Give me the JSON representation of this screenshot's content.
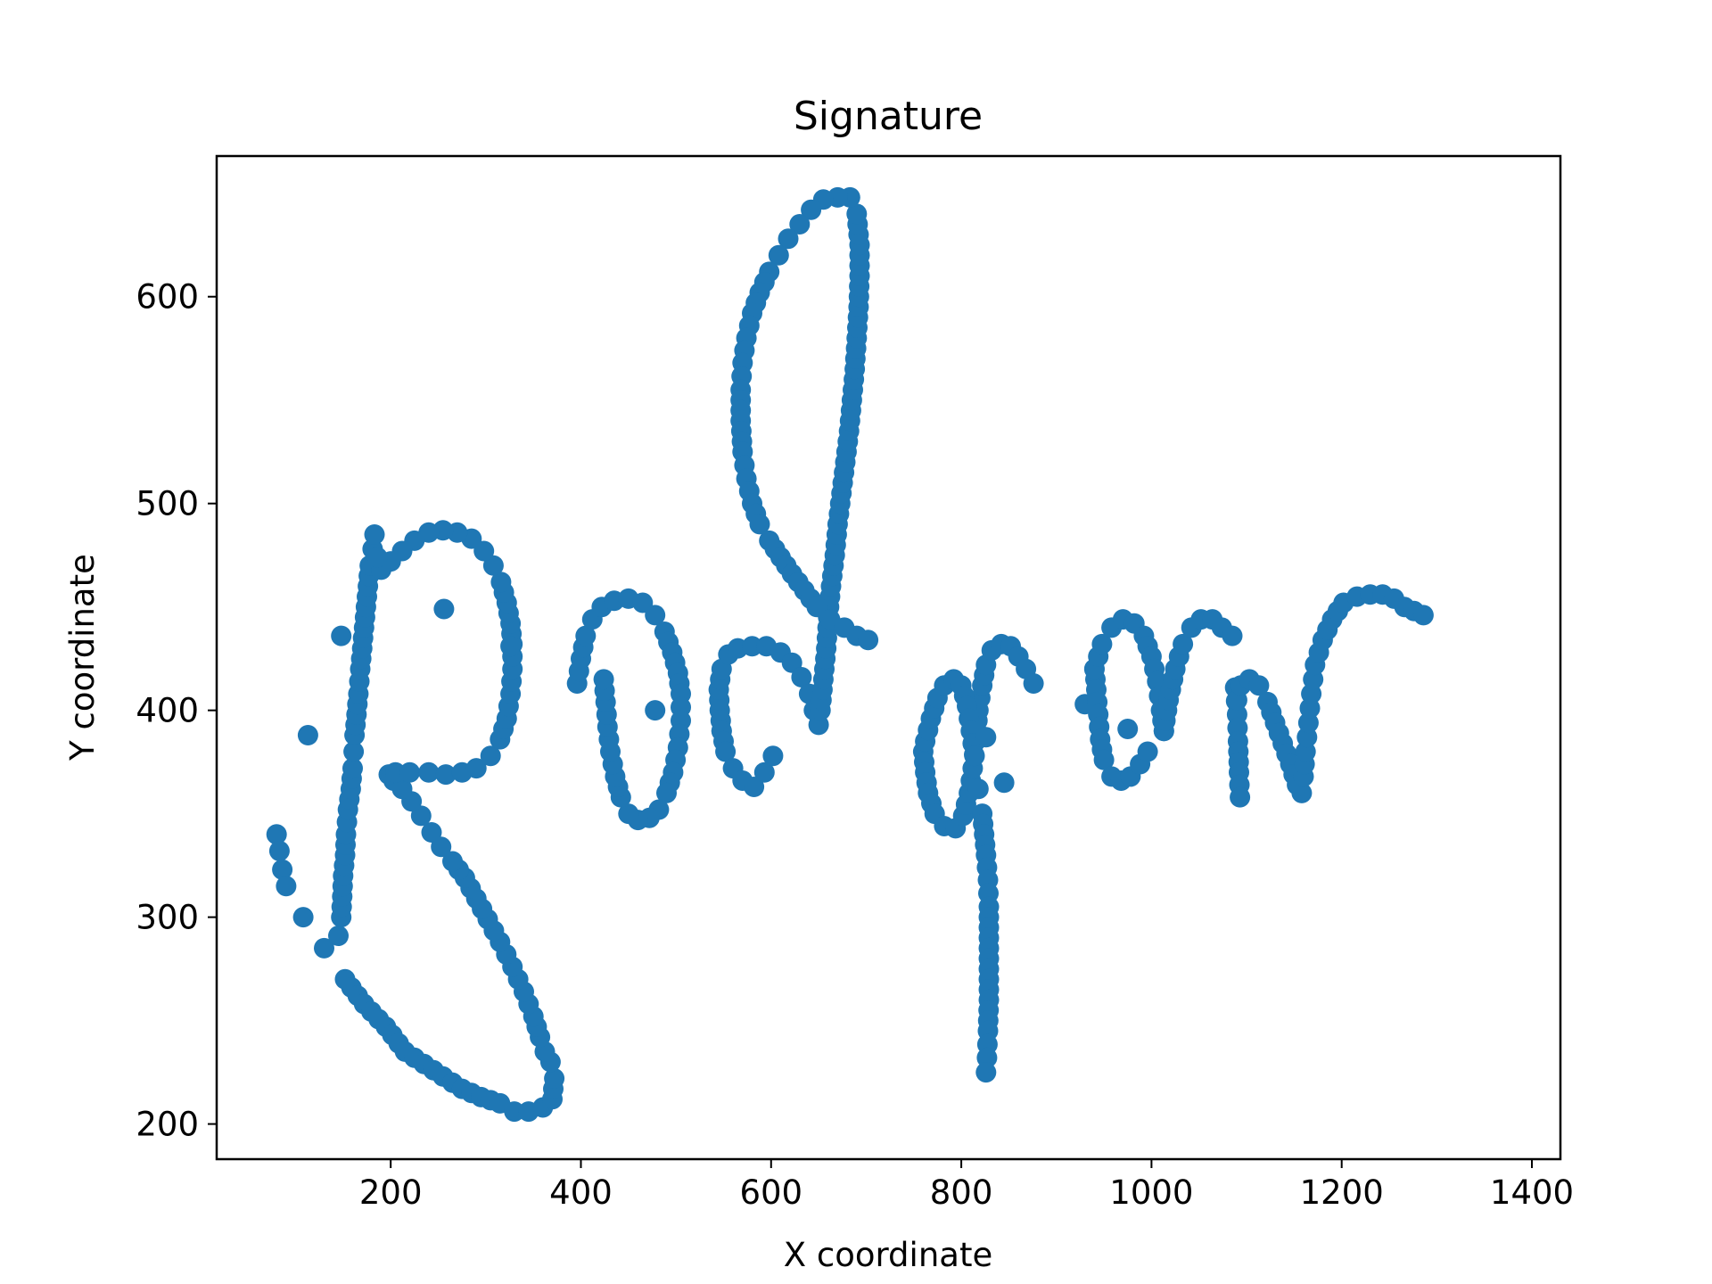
{
  "chart_data": {
    "type": "scatter",
    "title": "Signature",
    "xlabel": "X coordinate",
    "ylabel": "Y coordinate",
    "xlim": [
      17,
      1430
    ],
    "ylim": [
      183,
      668
    ],
    "xticks": [
      200,
      400,
      600,
      800,
      1000,
      1200,
      1400
    ],
    "yticks": [
      200,
      300,
      400,
      500,
      600
    ],
    "grid": false,
    "legend": "none",
    "marker_color": "#1f77b4",
    "series": [
      {
        "strokes": [
          [
            [
              80,
              340
            ],
            [
              83,
              332
            ],
            [
              86,
              323
            ],
            [
              90,
              315
            ]
          ],
          [
            [
              108,
              300
            ]
          ],
          [
            [
              113,
              388
            ]
          ],
          [
            [
              130,
              285
            ],
            [
              145,
              291
            ],
            [
              148,
              300
            ],
            [
              149,
              310
            ],
            [
              150,
              320
            ],
            [
              152,
              330
            ],
            [
              153,
              340
            ],
            [
              155,
              352
            ],
            [
              158,
              362
            ],
            [
              160,
              372
            ],
            [
              161,
              380
            ],
            [
              162,
              388
            ],
            [
              164,
              398
            ],
            [
              166,
              408
            ],
            [
              168,
              420
            ],
            [
              170,
              430
            ],
            [
              172,
              440
            ],
            [
              174,
              450
            ],
            [
              176,
              460
            ],
            [
              178,
              470
            ],
            [
              181,
              478
            ],
            [
              183,
              485
            ]
          ],
          [
            [
              148,
              436
            ]
          ],
          [
            [
              152,
              270
            ],
            [
              172,
              258
            ],
            [
              195,
              247
            ],
            [
              215,
              235
            ],
            [
              235,
              229
            ],
            [
              255,
              223
            ],
            [
              275,
              217
            ],
            [
              295,
              213
            ],
            [
              315,
              210
            ],
            [
              330,
              206
            ],
            [
              345,
              206
            ],
            [
              360,
              208
            ],
            [
              370,
              212
            ],
            [
              372,
              222
            ],
            [
              368,
              230
            ],
            [
              362,
              235
            ],
            [
              357,
              242
            ],
            [
              350,
              252
            ],
            [
              340,
              264
            ],
            [
              328,
              276
            ],
            [
              315,
              288
            ],
            [
              302,
              299
            ],
            [
              290,
              309
            ],
            [
              278,
              319
            ],
            [
              265,
              327
            ],
            [
              253,
              334
            ],
            [
              243,
              341
            ],
            [
              232,
              349
            ],
            [
              222,
              356
            ],
            [
              212,
              362
            ],
            [
              203,
              366
            ],
            [
              198,
              369
            ],
            [
              205,
              370
            ],
            [
              220,
              370
            ],
            [
              240,
              370
            ],
            [
              258,
              369
            ],
            [
              275,
              370
            ],
            [
              290,
              372
            ],
            [
              305,
              378
            ],
            [
              315,
              386
            ],
            [
              322,
              396
            ],
            [
              326,
              408
            ],
            [
              328,
              420
            ],
            [
              328,
              432
            ],
            [
              326,
              442
            ],
            [
              322,
              452
            ],
            [
              316,
              462
            ],
            [
              308,
              470
            ],
            [
              298,
              477
            ],
            [
              285,
              483
            ],
            [
              270,
              486
            ],
            [
              255,
              487
            ],
            [
              240,
              486
            ],
            [
              225,
              482
            ],
            [
              212,
              477
            ],
            [
              200,
              472
            ],
            [
              190,
              468
            ],
            [
              186,
              474
            ]
          ],
          [
            [
              256,
              449
            ]
          ],
          [
            [
              326,
              431
            ]
          ],
          [
            [
              396,
              413
            ],
            [
              400,
              425
            ],
            [
              405,
              436
            ],
            [
              412,
              444
            ],
            [
              422,
              450
            ],
            [
              435,
              453
            ],
            [
              450,
              454
            ],
            [
              465,
              452
            ],
            [
              478,
              446
            ],
            [
              488,
              438
            ],
            [
              496,
              428
            ],
            [
              502,
              418
            ],
            [
              505,
              408
            ],
            [
              505,
              395
            ],
            [
              502,
              382
            ],
            [
              497,
              370
            ],
            [
              490,
              360
            ],
            [
              482,
              352
            ],
            [
              472,
              348
            ],
            [
              460,
              347
            ],
            [
              450,
              350
            ],
            [
              442,
              358
            ],
            [
              436,
              368
            ],
            [
              431,
              380
            ],
            [
              428,
              392
            ],
            [
              426,
              404
            ],
            [
              424,
              415
            ]
          ],
          [
            [
              478,
              400
            ]
          ],
          [
            [
              548,
              390
            ],
            [
              546,
              400
            ],
            [
              545,
              410
            ],
            [
              548,
              420
            ],
            [
              555,
              427
            ],
            [
              565,
              430
            ],
            [
              580,
              431
            ],
            [
              595,
              431
            ],
            [
              610,
              428
            ],
            [
              622,
              423
            ],
            [
              632,
              416
            ],
            [
              640,
              408
            ],
            [
              645,
              400
            ],
            [
              650,
              393
            ],
            [
              652,
              400
            ],
            [
              655,
              415
            ],
            [
              658,
              430
            ],
            [
              660,
              445
            ],
            [
              663,
              460
            ],
            [
              667,
              475
            ],
            [
              670,
              490
            ],
            [
              674,
              505
            ],
            [
              678,
              520
            ],
            [
              682,
              535
            ],
            [
              685,
              550
            ],
            [
              688,
              565
            ],
            [
              690,
              580
            ],
            [
              692,
              595
            ],
            [
              693,
              610
            ],
            [
              693,
              625
            ],
            [
              690,
              640
            ],
            [
              683,
              648
            ],
            [
              670,
              648
            ],
            [
              655,
              647
            ],
            [
              642,
              642
            ],
            [
              630,
              635
            ],
            [
              618,
              628
            ],
            [
              608,
              620
            ],
            [
              598,
              612
            ],
            [
              588,
              602
            ],
            [
              580,
              592
            ],
            [
              574,
              580
            ],
            [
              570,
              568
            ],
            [
              568,
              555
            ],
            [
              568,
              540
            ],
            [
              570,
              525
            ],
            [
              574,
              512
            ],
            [
              580,
              500
            ],
            [
              588,
              490
            ],
            [
              598,
              482
            ],
            [
              610,
              474
            ],
            [
              622,
              466
            ],
            [
              635,
              458
            ],
            [
              648,
              450
            ],
            [
              662,
              444
            ],
            [
              677,
              440
            ],
            [
              690,
              436
            ],
            [
              702,
              434
            ]
          ],
          [
            [
              548,
              390
            ],
            [
              552,
              380
            ],
            [
              560,
              372
            ],
            [
              570,
              366
            ],
            [
              582,
              363
            ],
            [
              593,
              370
            ],
            [
              602,
              378
            ]
          ],
          [
            [
              760,
              380
            ],
            [
              762,
              370
            ],
            [
              765,
              360
            ],
            [
              772,
              350
            ],
            [
              782,
              344
            ],
            [
              794,
              343
            ],
            [
              802,
              349
            ],
            [
              808,
              360
            ],
            [
              812,
              372
            ],
            [
              815,
              385
            ],
            [
              818,
              400
            ],
            [
              822,
              412
            ],
            [
              826,
              422
            ],
            [
              832,
              429
            ],
            [
              842,
              432
            ],
            [
              852,
              431
            ],
            [
              860,
              426
            ],
            [
              868,
              420
            ],
            [
              876,
              413
            ]
          ],
          [
            [
              762,
              385
            ],
            [
              768,
              396
            ],
            [
              775,
              406
            ],
            [
              782,
              412
            ],
            [
              792,
              415
            ],
            [
              800,
              412
            ],
            [
              806,
              402
            ],
            [
              810,
              390
            ],
            [
              814,
              378
            ]
          ],
          [
            [
              818,
              362
            ]
          ],
          [
            [
              826,
              387
            ]
          ],
          [
            [
              845,
              365
            ]
          ],
          [
            [
              822,
              350
            ],
            [
              824,
              340
            ],
            [
              826,
              330
            ],
            [
              828,
              318
            ],
            [
              829,
              305
            ],
            [
              829,
              290
            ],
            [
              829,
              275
            ],
            [
              829,
              260
            ],
            [
              828,
              245
            ],
            [
              827,
              232
            ],
            [
              826,
              225
            ]
          ],
          [
            [
              930,
              403
            ]
          ],
          [
            [
              940,
              420
            ],
            [
              942,
              410
            ],
            [
              944,
              398
            ],
            [
              946,
              386
            ],
            [
              950,
              376
            ],
            [
              958,
              368
            ],
            [
              968,
              366
            ],
            [
              978,
              368
            ],
            [
              988,
              374
            ],
            [
              996,
              380
            ]
          ],
          [
            [
              940,
              420
            ],
            [
              948,
              432
            ],
            [
              958,
              440
            ],
            [
              970,
              444
            ],
            [
              982,
              442
            ],
            [
              992,
              436
            ],
            [
              1000,
              426
            ],
            [
              1006,
              414
            ],
            [
              1010,
              400
            ],
            [
              1013,
              390
            ]
          ],
          [
            [
              975,
              391
            ]
          ],
          [
            [
              1013,
              390
            ],
            [
              1018,
              405
            ],
            [
              1025,
              420
            ],
            [
              1033,
              432
            ],
            [
              1042,
              440
            ],
            [
              1052,
              444
            ],
            [
              1064,
              444
            ],
            [
              1074,
              440
            ],
            [
              1085,
              436
            ]
          ],
          [
            [
              1088,
              411
            ],
            [
              1090,
              398
            ],
            [
              1091,
              385
            ],
            [
              1092,
              370
            ],
            [
              1093,
              358
            ]
          ],
          [
            [
              1090,
              405
            ],
            [
              1094,
              412
            ],
            [
              1103,
              415
            ],
            [
              1113,
              412
            ],
            [
              1122,
              404
            ],
            [
              1130,
              394
            ],
            [
              1138,
              384
            ],
            [
              1146,
              374
            ],
            [
              1153,
              364
            ],
            [
              1158,
              360
            ],
            [
              1160,
              368
            ],
            [
              1162,
              380
            ],
            [
              1165,
              394
            ],
            [
              1168,
              408
            ],
            [
              1172,
              422
            ],
            [
              1180,
              434
            ],
            [
              1190,
              444
            ],
            [
              1202,
              452
            ],
            [
              1216,
              455
            ],
            [
              1230,
              456
            ],
            [
              1243,
              456
            ],
            [
              1255,
              454
            ],
            [
              1266,
              450
            ],
            [
              1276,
              448
            ],
            [
              1286,
              446
            ]
          ]
        ]
      }
    ]
  }
}
